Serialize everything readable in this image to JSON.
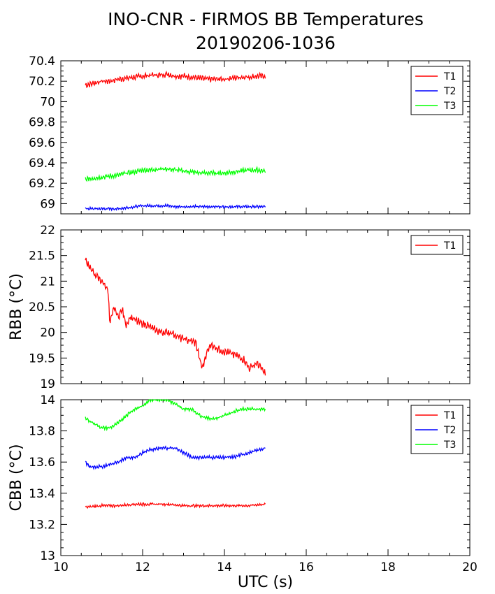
{
  "title": {
    "line1": "INO-CNR - FIRMOS BB Temperatures",
    "line2": "20190206-1036"
  },
  "chart_data": [
    {
      "type": "line",
      "ylabel": "",
      "xlim": [
        10,
        20
      ],
      "ylim": [
        68.9,
        70.4
      ],
      "yticks": [
        "70.4",
        "70.2",
        "70",
        "69.8",
        "69.6",
        "69.4",
        "69.2",
        "69"
      ],
      "ytick_values": [
        70.4,
        70.2,
        70.0,
        69.8,
        69.6,
        69.4,
        69.2,
        69.0
      ],
      "legend_position": "top-right",
      "series": [
        {
          "name": "T1",
          "color": "#ff0000",
          "x": [
            10.6,
            10.8,
            11.0,
            11.2,
            11.4,
            11.6,
            11.8,
            12.0,
            12.2,
            12.4,
            12.6,
            12.8,
            13.0,
            13.2,
            13.4,
            13.6,
            13.8,
            14.0,
            14.2,
            14.4,
            14.6,
            14.8,
            15.0
          ],
          "y": [
            70.16,
            70.18,
            70.2,
            70.2,
            70.22,
            70.23,
            70.24,
            70.25,
            70.26,
            70.26,
            70.27,
            70.25,
            70.25,
            70.24,
            70.23,
            70.22,
            70.22,
            70.22,
            70.23,
            70.24,
            70.24,
            70.25,
            70.25
          ],
          "noise": 0.03
        },
        {
          "name": "T2",
          "color": "#0000ff",
          "x": [
            10.6,
            11.0,
            11.4,
            11.6,
            11.8,
            12.0,
            12.2,
            12.4,
            12.6,
            12.8,
            13.0,
            13.4,
            13.8,
            14.2,
            14.6,
            15.0
          ],
          "y": [
            68.95,
            68.95,
            68.95,
            68.96,
            68.97,
            68.98,
            68.98,
            68.98,
            68.98,
            68.97,
            68.97,
            68.97,
            68.97,
            68.97,
            68.97,
            68.97
          ],
          "noise": 0.015
        },
        {
          "name": "T3",
          "color": "#00ff00",
          "x": [
            10.6,
            10.8,
            11.0,
            11.2,
            11.4,
            11.6,
            11.8,
            12.0,
            12.2,
            12.4,
            12.6,
            12.8,
            13.0,
            13.2,
            13.4,
            13.6,
            13.8,
            14.0,
            14.2,
            14.4,
            14.6,
            14.8,
            15.0
          ],
          "y": [
            69.24,
            69.25,
            69.26,
            69.27,
            69.28,
            69.3,
            69.31,
            69.33,
            69.33,
            69.34,
            69.34,
            69.33,
            69.32,
            69.31,
            69.3,
            69.3,
            69.3,
            69.3,
            69.31,
            69.32,
            69.33,
            69.33,
            69.32
          ],
          "noise": 0.025
        }
      ]
    },
    {
      "type": "line",
      "ylabel": "RBB (°C)",
      "xlim": [
        10,
        20
      ],
      "ylim": [
        19,
        22
      ],
      "yticks": [
        "22",
        "21.5",
        "21",
        "20.5",
        "20",
        "19.5",
        "19"
      ],
      "ytick_values": [
        22,
        21.5,
        21,
        20.5,
        20,
        19.5,
        19
      ],
      "legend_position": "top-right",
      "series": [
        {
          "name": "T1",
          "color": "#ff0000",
          "x": [
            10.6,
            10.7,
            10.8,
            11.0,
            11.15,
            11.2,
            11.3,
            11.4,
            11.5,
            11.6,
            11.7,
            11.9,
            12.1,
            12.3,
            12.5,
            12.7,
            12.9,
            13.1,
            13.3,
            13.45,
            13.5,
            13.6,
            13.7,
            13.9,
            14.1,
            14.3,
            14.5,
            14.6,
            14.8,
            15.0
          ],
          "y": [
            21.4,
            21.3,
            21.15,
            21.0,
            20.85,
            20.15,
            20.5,
            20.3,
            20.45,
            20.15,
            20.3,
            20.2,
            20.15,
            20.05,
            20.0,
            20.0,
            19.9,
            19.85,
            19.8,
            19.3,
            19.4,
            19.7,
            19.75,
            19.65,
            19.6,
            19.55,
            19.45,
            19.3,
            19.4,
            19.2
          ],
          "noise": 0.08
        }
      ]
    },
    {
      "type": "line",
      "ylabel": "CBB (°C)",
      "xlabel": "UTC (s)",
      "xlim": [
        10,
        20
      ],
      "ylim": [
        13,
        14
      ],
      "xticks": [
        "10",
        "12",
        "14",
        "16",
        "18",
        "20"
      ],
      "xtick_values": [
        10,
        12,
        14,
        16,
        18,
        20
      ],
      "yticks": [
        "14",
        "13.8",
        "13.6",
        "13.4",
        "13.2",
        "13"
      ],
      "ytick_values": [
        14,
        13.8,
        13.6,
        13.4,
        13.2,
        13
      ],
      "legend_position": "top-right",
      "series": [
        {
          "name": "T1",
          "color": "#ff0000",
          "x": [
            10.6,
            11.0,
            11.4,
            11.8,
            12.2,
            12.6,
            13.0,
            13.4,
            13.8,
            14.2,
            14.6,
            15.0
          ],
          "y": [
            13.31,
            13.32,
            13.32,
            13.33,
            13.33,
            13.33,
            13.32,
            13.32,
            13.32,
            13.32,
            13.32,
            13.33
          ],
          "noise": 0.01
        },
        {
          "name": "T2",
          "color": "#0000ff",
          "x": [
            10.6,
            10.7,
            11.0,
            11.4,
            11.6,
            11.8,
            12.0,
            12.2,
            12.5,
            12.8,
            13.0,
            13.2,
            13.5,
            13.8,
            14.2,
            14.6,
            15.0
          ],
          "y": [
            13.6,
            13.57,
            13.57,
            13.6,
            13.63,
            13.63,
            13.66,
            13.68,
            13.69,
            13.69,
            13.66,
            13.63,
            13.63,
            13.63,
            13.63,
            13.66,
            13.69
          ],
          "noise": 0.012
        },
        {
          "name": "T3",
          "color": "#00ff00",
          "x": [
            10.6,
            10.8,
            11.0,
            11.2,
            11.4,
            11.6,
            11.8,
            12.0,
            12.2,
            12.4,
            12.6,
            12.8,
            13.0,
            13.2,
            13.4,
            13.6,
            13.8,
            14.0,
            14.4,
            14.8,
            15.0
          ],
          "y": [
            13.88,
            13.85,
            13.82,
            13.82,
            13.85,
            13.9,
            13.94,
            13.96,
            14.0,
            14.0,
            14.0,
            13.97,
            13.94,
            13.94,
            13.9,
            13.88,
            13.88,
            13.9,
            13.94,
            13.94,
            13.94
          ],
          "noise": 0.012
        }
      ]
    }
  ]
}
